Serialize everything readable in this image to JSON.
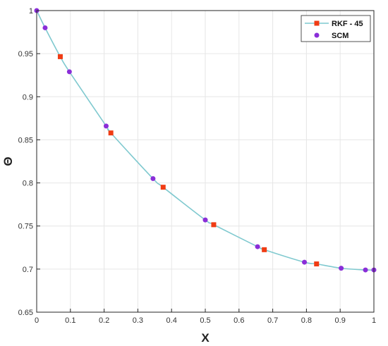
{
  "chart_data": {
    "type": "line",
    "xlabel": "X",
    "ylabel": "Θ",
    "xlim": [
      0,
      1
    ],
    "ylim": [
      0.65,
      1
    ],
    "x_ticks": [
      "0",
      "0.1",
      "0.2",
      "0.3",
      "0.4",
      "0.5",
      "0.6",
      "0.7",
      "0.8",
      "0.9",
      "1"
    ],
    "y_ticks": [
      "0.65",
      "0.7",
      "0.75",
      "0.8",
      "0.85",
      "0.9",
      "0.95",
      "1"
    ],
    "grid": true,
    "legend_position": "top-right",
    "curve_color": "#7fc9cf",
    "series": [
      {
        "name": "RKF - 45",
        "marker": "square",
        "color": "#f03c14",
        "x": [
          0.07,
          0.22,
          0.375,
          0.525,
          0.675,
          0.83
        ],
        "y": [
          0.9465,
          0.858,
          0.795,
          0.7515,
          0.7225,
          0.706
        ]
      },
      {
        "name": "SCM",
        "marker": "circle",
        "color": "#8a2ed8",
        "x": [
          0.0,
          0.025,
          0.097,
          0.206,
          0.345,
          0.5,
          0.655,
          0.794,
          0.903,
          0.975,
          1.0
        ],
        "y": [
          1.0,
          0.98,
          0.929,
          0.866,
          0.805,
          0.757,
          0.726,
          0.708,
          0.701,
          0.699,
          0.699
        ]
      }
    ]
  }
}
